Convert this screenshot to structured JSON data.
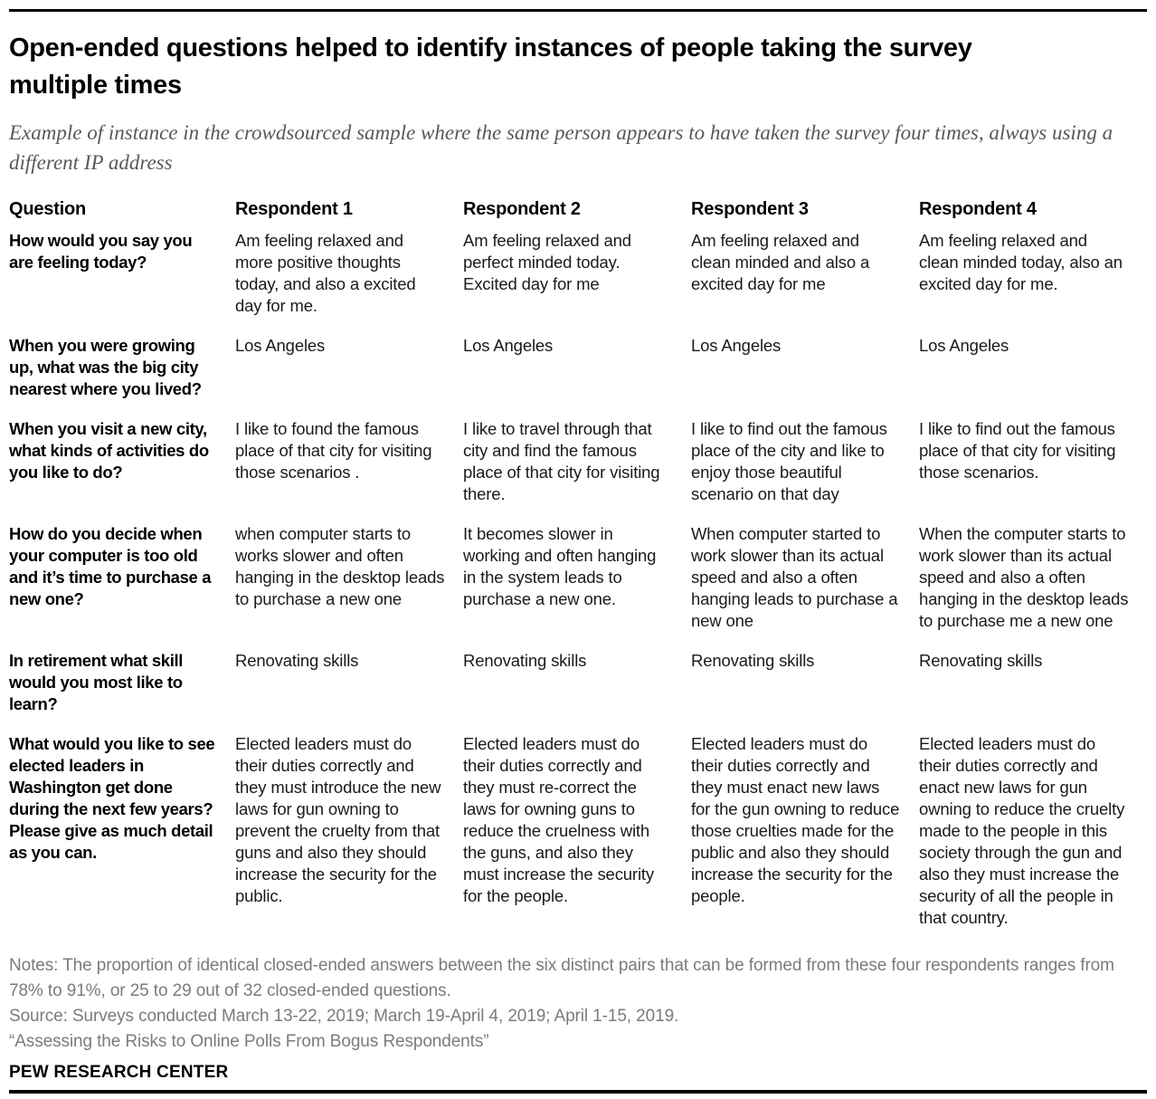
{
  "chart_data": {
    "type": "table",
    "title": "Open-ended questions helped to identify instances of people taking the survey multiple times",
    "subtitle": "Example of instance in the crowdsourced sample where the same person appears to have taken the survey four times, always using a different IP address",
    "columns": [
      "Question",
      "Respondent 1",
      "Respondent 2",
      "Respondent 3",
      "Respondent 4"
    ],
    "rows": [
      {
        "question": "How would you say you are feeling today?",
        "answers": [
          "Am feeling relaxed and more positive thoughts today, and also a excited day for me.",
          "Am feeling relaxed and perfect minded today. Excited day for me",
          "Am feeling relaxed and clean minded and also a excited day for me",
          "Am feeling relaxed and clean minded today, also an excited day for me."
        ]
      },
      {
        "question": "When you were growing up, what was the big city nearest where you lived?",
        "answers": [
          "Los Angeles",
          "Los Angeles",
          "Los Angeles",
          "Los Angeles"
        ]
      },
      {
        "question": "When you visit a new city, what kinds of activities do you like to do?",
        "answers": [
          "I like to found the famous place of that city for visiting those scenarios .",
          "I like to travel through that city and find the famous place of that city for visiting there.",
          "I like to find out the famous place of the city and like to enjoy those beautiful scenario on that day",
          "I like to find out the famous place of that city for visiting those scenarios."
        ]
      },
      {
        "question": "How do you decide when your computer is too old and it’s time to purchase a new one?",
        "answers": [
          "when computer starts to works slower and often hanging in the desktop leads to purchase a new one",
          "It becomes slower in working and often hanging in the system leads to purchase a new one.",
          "When computer started to work slower than its actual speed and also a often hanging leads to purchase a new one",
          "When the computer starts to work slower than its actual speed and also a often hanging in the desktop leads to purchase me a new one"
        ]
      },
      {
        "question": "In retirement what skill would you most like to learn?",
        "answers": [
          "Renovating skills",
          "Renovating skills",
          "Renovating skills",
          "Renovating skills"
        ]
      },
      {
        "question": "What would you like to see elected leaders in Washington get done during the next few years? Please give as much detail as you can.",
        "answers": [
          "Elected leaders must do their duties correctly and they must introduce the new laws for gun owning to prevent the cruelty from that guns and also they should increase the security for the public.",
          "Elected leaders must do their duties correctly and they must re-correct the laws for owning guns to reduce the cruelness with the guns, and also they must increase the security for the people.",
          "Elected leaders must do their duties correctly and they must enact new laws for the gun owning to reduce those cruelties made for the public and also they should increase the security for the people.",
          "Elected leaders must do their duties correctly and enact new laws for gun owning to reduce the cruelty made to the people in this society through the gun and also they must increase the security of all the people in that country."
        ]
      }
    ]
  },
  "footer": {
    "notes": "Notes: The proportion of identical closed-ended answers between the six distinct pairs that can be formed from these four respondents ranges from 78% to 91%, or 25 to 29 out of 32 closed-ended questions.",
    "source": "Source: Surveys conducted March 13-22, 2019; March 19-April 4, 2019; April 1-15, 2019.",
    "report_title": "“Assessing the Risks to Online Polls From Bogus Respondents”",
    "brand": "PEW RESEARCH CENTER"
  },
  "colors": {
    "text_black": "#000000",
    "body_text": "#1a1a1a",
    "subtitle_gray": "#58585a",
    "notes_gray": "#7b7b7b",
    "rule_black": "#000000"
  }
}
